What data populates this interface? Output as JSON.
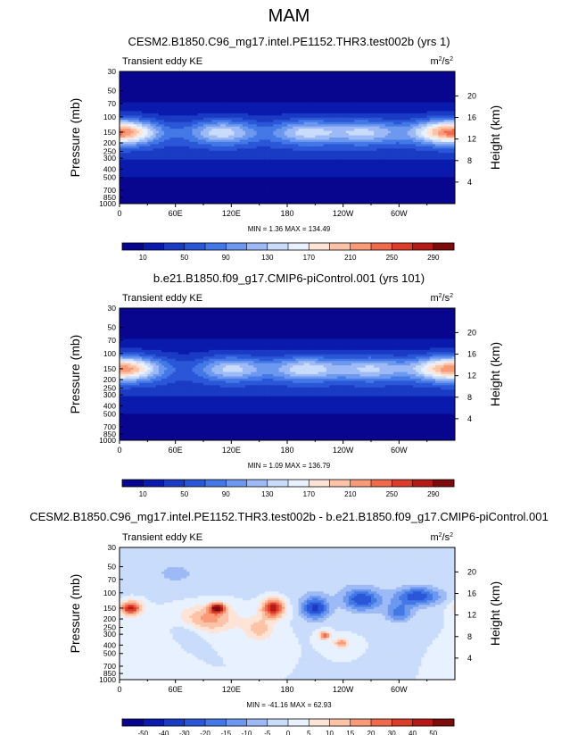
{
  "page_title": "MAM",
  "colors": {
    "positive_scale": [
      "#08068f",
      "#0a1aad",
      "#1a3bc4",
      "#2b56d8",
      "#4378e6",
      "#6d98f0",
      "#9dbaf6",
      "#c9dcfb",
      "#e8f1ff",
      "#fde4d6",
      "#fcc3a7",
      "#f99a78",
      "#f06a4c",
      "#dc3c2a",
      "#b51a16",
      "#7c0b0b"
    ],
    "diff_scale": [
      "#08068f",
      "#0a1aad",
      "#1a3bc4",
      "#2b56d8",
      "#4378e6",
      "#6d98f0",
      "#9dbaf6",
      "#c9dcfb",
      "#e8f1ff",
      "#fde4d6",
      "#fcc3a7",
      "#f99a78",
      "#f06a4c",
      "#dc3c2a",
      "#b51a16",
      "#7c0b0b"
    ]
  },
  "chart_data": [
    {
      "type": "heatmap",
      "title": "CESM2.B1850.C96_mg17.intel.PE1152.THR3.test002b (yrs 1)",
      "subtitle_left": "Transient eddy KE",
      "units_base": "m",
      "units_sup1": "2",
      "units_mid": "/s",
      "units_sup2": "2",
      "ylabel": "Pressure (mb)",
      "ylabel_right": "Height (km)",
      "x_ticks": [
        "0",
        "60E",
        "120E",
        "180",
        "120W",
        "60W"
      ],
      "x_tick_values": [
        0,
        60,
        120,
        180,
        240,
        300
      ],
      "xlim": [
        0,
        360
      ],
      "y_ticks": [
        "30",
        "50",
        "70",
        "100",
        "150",
        "200",
        "250",
        "300",
        "400",
        "500",
        "700",
        "850",
        "1000"
      ],
      "y_tick_values": [
        30,
        50,
        70,
        100,
        150,
        200,
        250,
        300,
        400,
        500,
        700,
        850,
        1000
      ],
      "ylim": [
        1000,
        30
      ],
      "height_ticks": [
        "20",
        "16",
        "12",
        "8",
        "4"
      ],
      "height_tick_values": [
        20,
        16,
        12,
        8,
        4
      ],
      "stats_text": "MIN =   1.36  MAX = 134.49",
      "min": 1.36,
      "max": 134.49,
      "colorbar_labels": [
        "10",
        "50",
        "90",
        "130",
        "170",
        "210",
        "250",
        "290"
      ],
      "colorbar_levels": [
        10,
        30,
        50,
        70,
        90,
        110,
        130,
        150,
        170,
        190,
        210,
        230,
        250,
        270,
        290
      ],
      "jet_pressure": 150,
      "jet_centers_lon": [
        10,
        110,
        200,
        265,
        345
      ],
      "jet_strength": [
        0.85,
        0.8,
        0.75,
        0.7,
        0.8
      ]
    },
    {
      "type": "heatmap",
      "title": "b.e21.B1850.f09_g17.CMIP6-piControl.001 (yrs 101)",
      "subtitle_left": "Transient eddy KE",
      "units_base": "m",
      "units_sup1": "2",
      "units_mid": "/s",
      "units_sup2": "2",
      "ylabel": "Pressure (mb)",
      "ylabel_right": "Height (km)",
      "x_ticks": [
        "0",
        "60E",
        "120E",
        "180",
        "120W",
        "60W"
      ],
      "x_tick_values": [
        0,
        60,
        120,
        180,
        240,
        300
      ],
      "xlim": [
        0,
        360
      ],
      "y_ticks": [
        "30",
        "50",
        "70",
        "100",
        "150",
        "200",
        "250",
        "300",
        "400",
        "500",
        "700",
        "850",
        "1000"
      ],
      "y_tick_values": [
        30,
        50,
        70,
        100,
        150,
        200,
        250,
        300,
        400,
        500,
        700,
        850,
        1000
      ],
      "ylim": [
        1000,
        30
      ],
      "height_ticks": [
        "20",
        "16",
        "12",
        "8",
        "4"
      ],
      "height_tick_values": [
        20,
        16,
        12,
        8,
        4
      ],
      "stats_text": "MIN =   1.09  MAX = 136.79",
      "min": 1.09,
      "max": 136.79,
      "colorbar_labels": [
        "10",
        "50",
        "90",
        "130",
        "170",
        "210",
        "250",
        "290"
      ],
      "colorbar_levels": [
        10,
        30,
        50,
        70,
        90,
        110,
        130,
        150,
        170,
        190,
        210,
        230,
        250,
        270,
        290
      ],
      "jet_pressure": 150,
      "jet_centers_lon": [
        15,
        120,
        200,
        270,
        345
      ],
      "jet_strength": [
        0.8,
        0.75,
        0.8,
        0.7,
        0.85
      ]
    },
    {
      "type": "heatmap",
      "title": "CESM2.B1850.C96_mg17.intel.PE1152.THR3.test002b - b.e21.B1850.f09_g17.CMIP6-piControl.001",
      "subtitle_left": "Transient eddy KE",
      "units_base": "m",
      "units_sup1": "2",
      "units_mid": "/s",
      "units_sup2": "2",
      "ylabel": "Pressure (mb)",
      "ylabel_right": "Height (km)",
      "x_ticks": [
        "0",
        "60E",
        "120E",
        "180",
        "120W",
        "60W"
      ],
      "x_tick_values": [
        0,
        60,
        120,
        180,
        240,
        300
      ],
      "xlim": [
        0,
        360
      ],
      "y_ticks": [
        "30",
        "50",
        "70",
        "100",
        "150",
        "200",
        "250",
        "300",
        "400",
        "500",
        "700",
        "850",
        "1000"
      ],
      "y_tick_values": [
        30,
        50,
        70,
        100,
        150,
        200,
        250,
        300,
        400,
        500,
        700,
        850,
        1000
      ],
      "ylim": [
        1000,
        30
      ],
      "height_ticks": [
        "20",
        "16",
        "12",
        "8",
        "4"
      ],
      "height_tick_values": [
        20,
        16,
        12,
        8,
        4
      ],
      "stats_text": "MIN = -41.16  MAX =  62.93",
      "min": -41.16,
      "max": 62.93,
      "colorbar_labels": [
        "-50",
        "-40",
        "-30",
        "-20",
        "-15",
        "-10",
        "-5",
        "0",
        "5",
        "10",
        "15",
        "20",
        "30",
        "40",
        "50"
      ],
      "colorbar_levels": [
        -50,
        -40,
        -30,
        -20,
        -15,
        -10,
        -5,
        0,
        5,
        10,
        15,
        20,
        30,
        40,
        50
      ]
    }
  ]
}
